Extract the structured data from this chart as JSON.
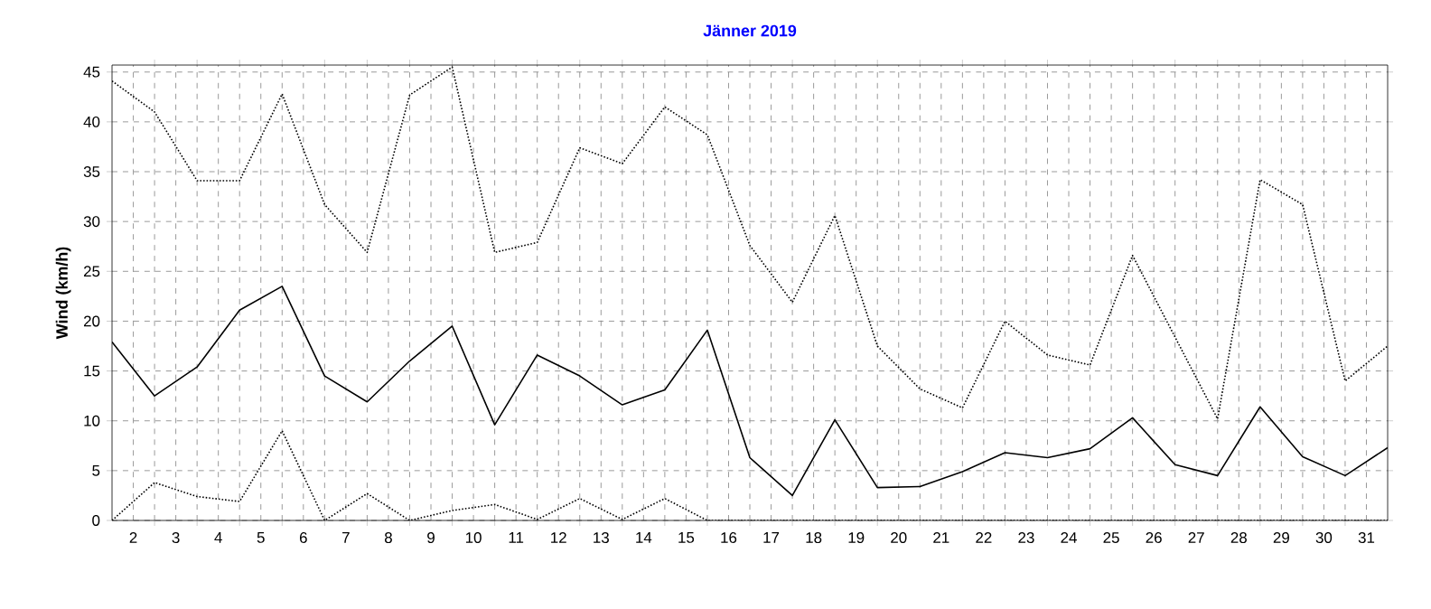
{
  "chart_data": {
    "type": "line",
    "title": "Jänner 2019",
    "ylabel": "Wind  (km/h)",
    "x": [
      1.5,
      2.5,
      3.5,
      4.5,
      5.5,
      6.5,
      7.5,
      8.5,
      9.5,
      10.5,
      11.5,
      12.5,
      13.5,
      14.5,
      15.5,
      16.5,
      17.5,
      18.5,
      19.5,
      20.5,
      21.5,
      22.5,
      23.5,
      24.5,
      25.5,
      26.5,
      27.5,
      28.5,
      29.5,
      30.5,
      31.5
    ],
    "series": [
      {
        "color": "#000000",
        "line_style": "dotted",
        "values": [
          44.1,
          41,
          34.1,
          34.1,
          42.8,
          31.7,
          26.9,
          42.7,
          45.5,
          26.9,
          27.9,
          37.4,
          35.8,
          41.5,
          38.7,
          27.6,
          21.9,
          30.6,
          17.5,
          13.2,
          11.3,
          20.0,
          16.6,
          15.6,
          26.6,
          18.4,
          10.2,
          34.2,
          31.7,
          14.0,
          17.5
        ]
      },
      {
        "color": "#000000",
        "line_style": "solid",
        "values": [
          17.9,
          12.5,
          15.4,
          21.1,
          23.5,
          14.5,
          11.9,
          16.0,
          19.5,
          9.6,
          16.6,
          14.5,
          11.6,
          13.1,
          19.1,
          6.3,
          2.5,
          10.1,
          3.3,
          3.4,
          4.9,
          6.8,
          6.3,
          7.2,
          10.3,
          5.6,
          4.5,
          11.4,
          6.4,
          4.5,
          7.3
        ]
      },
      {
        "color": "#000000",
        "line_style": "dotted",
        "values": [
          0,
          3.8,
          2.4,
          1.9,
          9.0,
          0,
          2.7,
          0,
          1.0,
          1.6,
          0.1,
          2.2,
          0.1,
          2.2,
          0,
          0,
          0,
          0,
          0,
          0,
          0,
          0,
          0,
          0,
          0,
          0,
          0,
          0,
          0,
          0,
          0
        ]
      }
    ],
    "xlim": [
      1.5,
      31.5
    ],
    "ylim": [
      0,
      45.7
    ],
    "xticks": [
      2,
      3,
      4,
      5,
      6,
      7,
      8,
      9,
      10,
      11,
      12,
      13,
      14,
      15,
      16,
      17,
      18,
      19,
      20,
      21,
      22,
      23,
      24,
      25,
      26,
      27,
      28,
      29,
      30,
      31,
      {
        "value": 2.5,
        "label": null
      },
      {
        "value": 3.5,
        "label": null
      },
      {
        "value": 4.5,
        "label": null
      },
      {
        "value": 5.5,
        "label": null
      },
      {
        "value": 6.5,
        "label": null
      },
      {
        "value": 7.5,
        "label": null
      },
      {
        "value": 8.5,
        "label": null
      },
      {
        "value": 9.5,
        "label": null
      },
      {
        "value": 10.5,
        "label": null
      },
      {
        "value": 11.5,
        "label": null
      },
      {
        "value": 12.5,
        "label": null
      },
      {
        "value": 13.5,
        "label": null
      },
      {
        "value": 14.5,
        "label": null
      },
      {
        "value": 15.5,
        "label": null
      },
      {
        "value": 16.5,
        "label": null
      },
      {
        "value": 17.5,
        "label": null
      },
      {
        "value": 18.5,
        "label": null
      },
      {
        "value": 19.5,
        "label": null
      },
      {
        "value": 20.5,
        "label": null
      },
      {
        "value": 21.5,
        "label": null
      },
      {
        "value": 22.5,
        "label": null
      },
      {
        "value": 23.5,
        "label": null
      },
      {
        "value": 24.5,
        "label": null
      },
      {
        "value": 25.5,
        "label": null
      },
      {
        "value": 26.5,
        "label": null
      },
      {
        "value": 27.5,
        "label": null
      },
      {
        "value": 28.5,
        "label": null
      },
      {
        "value": 29.5,
        "label": null
      },
      {
        "value": 30.5,
        "label": null
      }
    ],
    "yticks": [
      0,
      5,
      10,
      15,
      20,
      25,
      30,
      35,
      40,
      45
    ],
    "grid": true,
    "marker": "none"
  }
}
